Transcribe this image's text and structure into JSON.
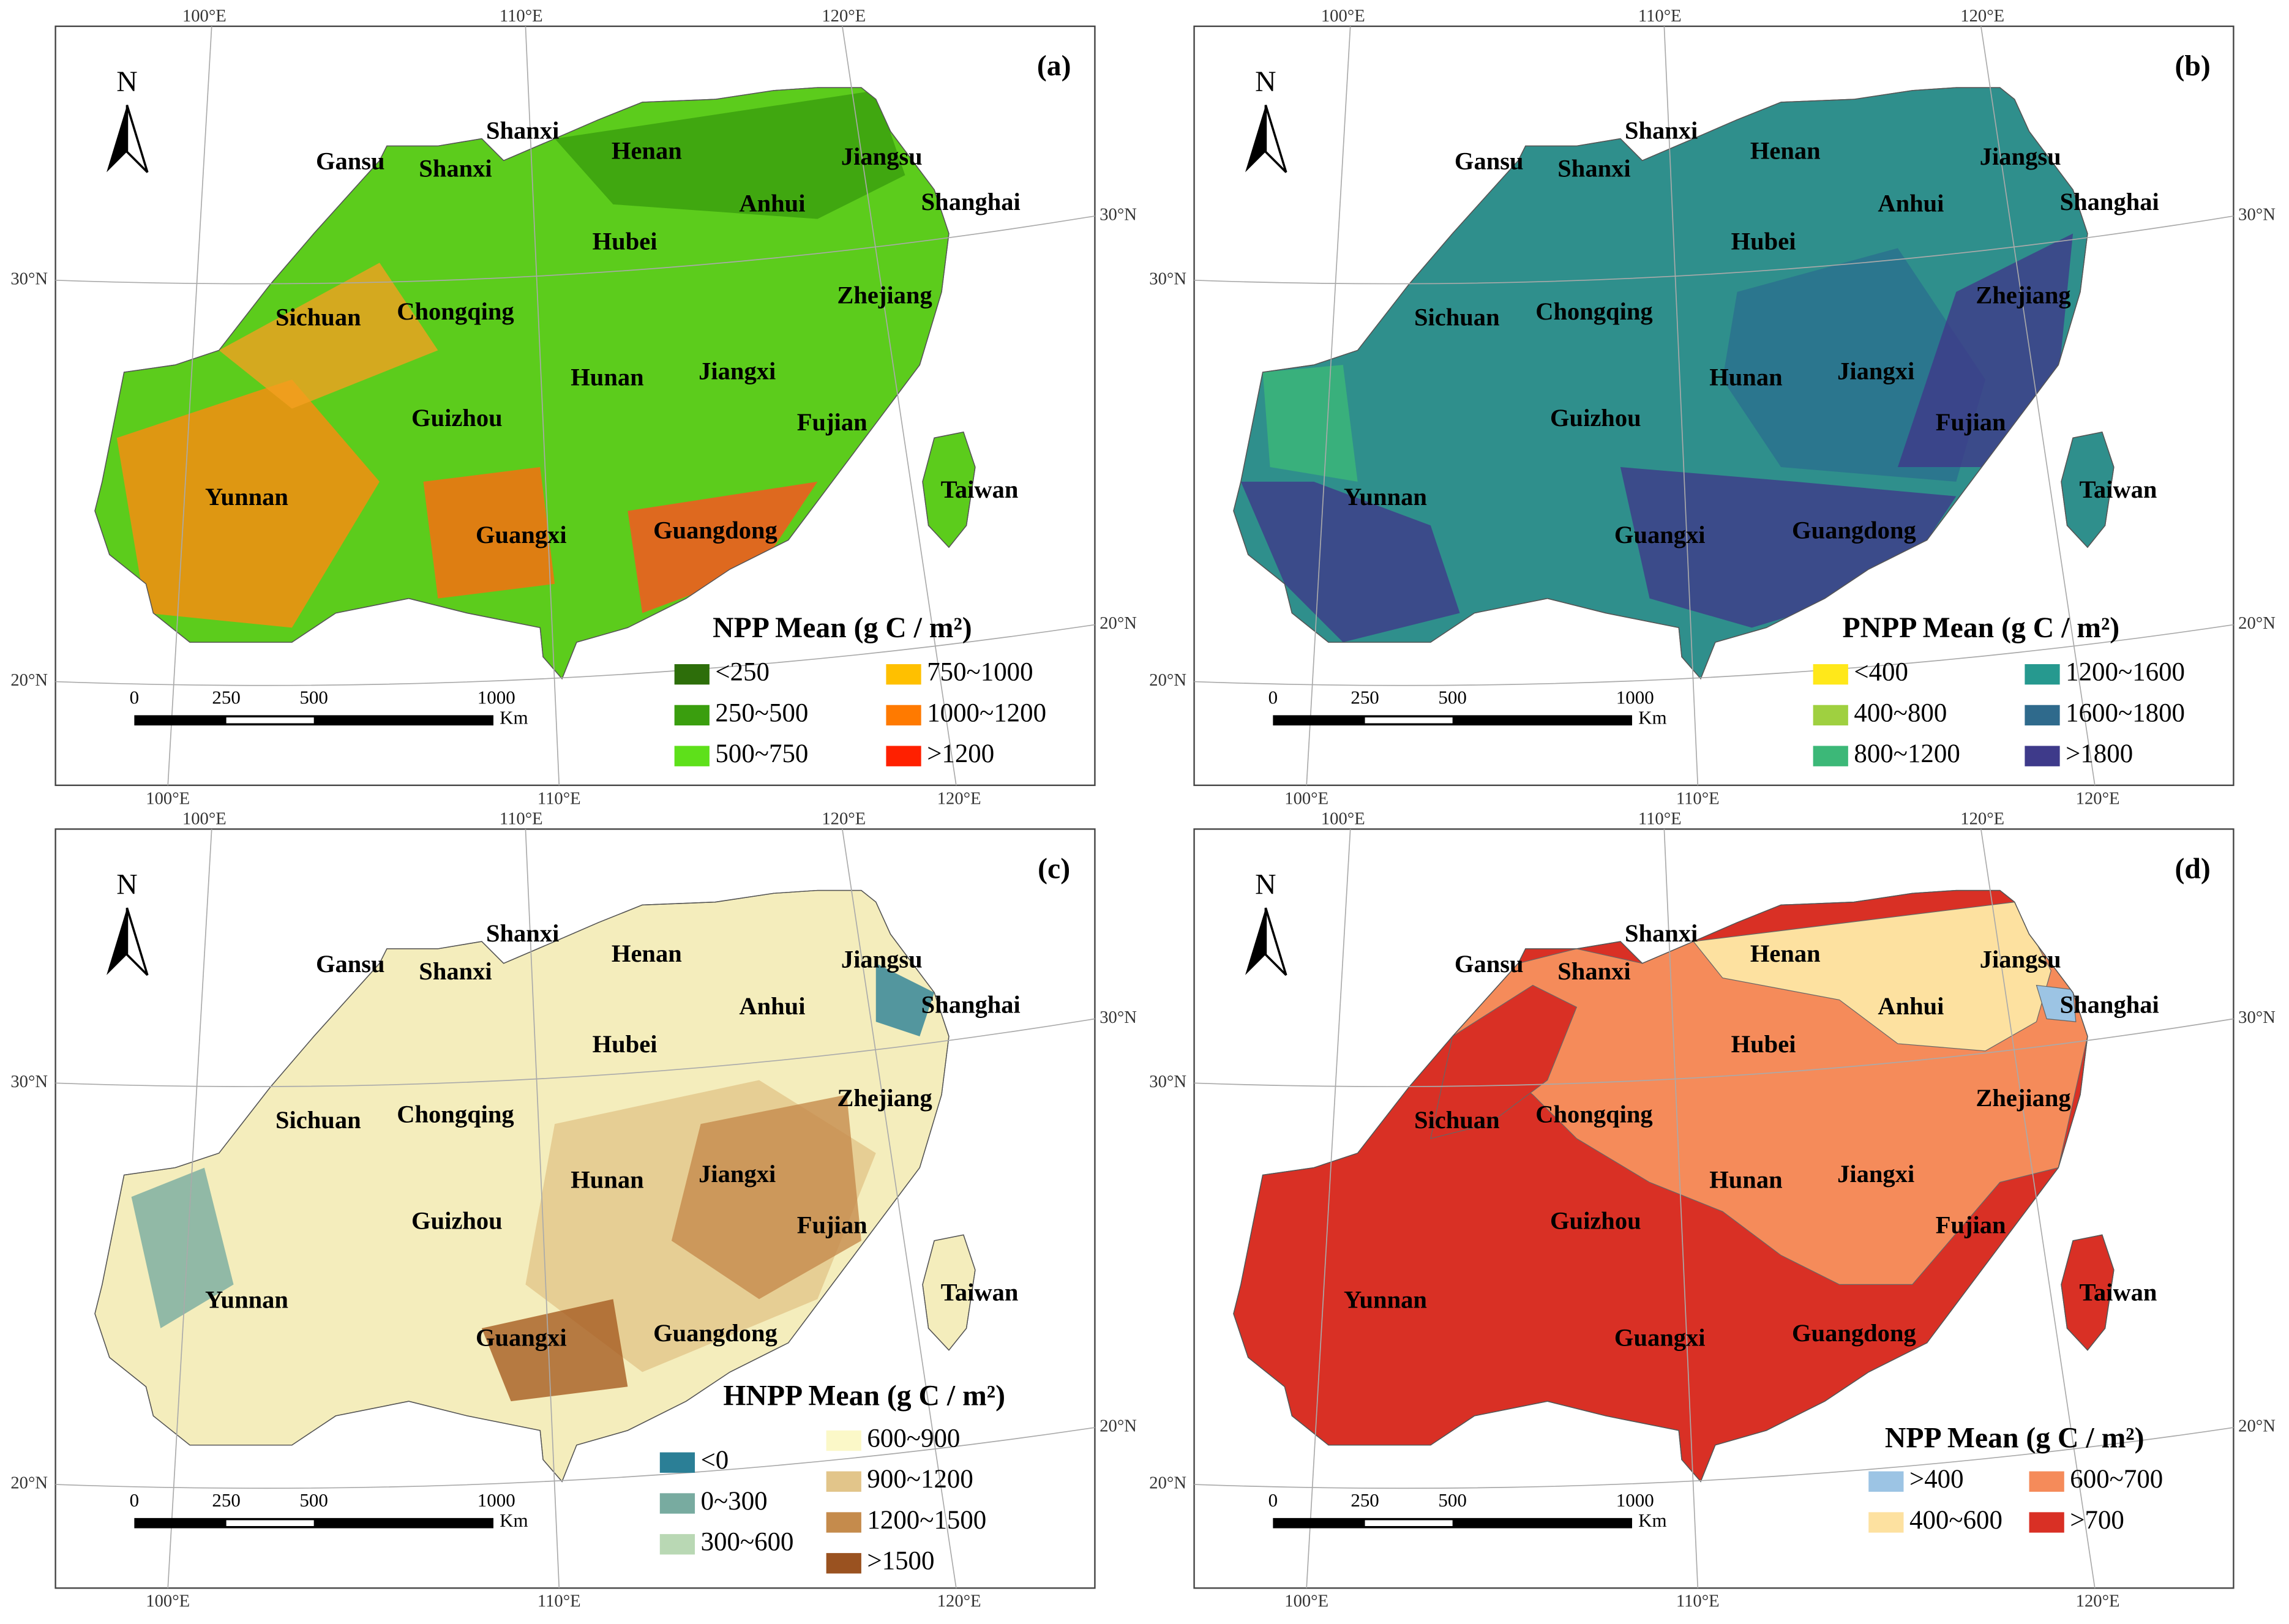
{
  "panels": [
    {
      "label": "(a)",
      "legend": {
        "title": "NPP Mean (g C / m²)",
        "items": [
          {
            "label": "<250",
            "color": "#2d6e0a"
          },
          {
            "label": "250~500",
            "color": "#3a9e0e"
          },
          {
            "label": "500~750",
            "color": "#5ee01a"
          },
          {
            "label": "750~1000",
            "color": "#ffc000"
          },
          {
            "label": "1000~1200",
            "color": "#ff7a00"
          },
          {
            "label": ">1200",
            "color": "#ff2000"
          }
        ]
      }
    },
    {
      "label": "(b)",
      "legend": {
        "title": "PNPP Mean (g C / m²)",
        "items": [
          {
            "label": "<400",
            "color": "#ffe81a"
          },
          {
            "label": "400~800",
            "color": "#9fd040"
          },
          {
            "label": "800~1200",
            "color": "#3cb878"
          },
          {
            "label": "1200~1600",
            "color": "#26998f"
          },
          {
            "label": "1600~1800",
            "color": "#2f6a8c"
          },
          {
            "label": ">1800",
            "color": "#3e3a8a"
          }
        ]
      }
    },
    {
      "label": "(c)",
      "legend": {
        "title": "HNPP Mean (g C / m²)",
        "items": [
          {
            "label": "<0",
            "color": "#2b7f96"
          },
          {
            "label": "0~300",
            "color": "#78aba0"
          },
          {
            "label": "300~600",
            "color": "#b9d8b4"
          },
          {
            "label": "600~900",
            "color": "#fbf8c8"
          },
          {
            "label": "900~1200",
            "color": "#e2c58a"
          },
          {
            "label": "1200~1500",
            "color": "#c58b4c"
          },
          {
            "label": ">1500",
            "color": "#9a5220"
          }
        ]
      }
    },
    {
      "label": "(d)",
      "legend": {
        "title": "NPP Mean (g C / m²)",
        "items": [
          {
            "label": ">400",
            "color": "#9cc4e4"
          },
          {
            "label": "400~600",
            "color": "#fde1a0"
          },
          {
            "label": "600~700",
            "color": "#f58b5a"
          },
          {
            "label": ">700",
            "color": "#d93025"
          }
        ]
      }
    }
  ],
  "provinces": [
    "Gansu",
    "Shanxi",
    "Shanxi",
    "Henan",
    "Jiangsu",
    "Anhui",
    "Shanghai",
    "Hubei",
    "Zhejiang",
    "Sichuan",
    "Chongqing",
    "Hunan",
    "Jiangxi",
    "Fujian",
    "Guizhou",
    "Taiwan",
    "Yunnan",
    "Guangxi",
    "Guangdong"
  ],
  "north": "N",
  "graticule": {
    "top": [
      "100°E",
      "110°E",
      "120°E"
    ],
    "bottom": [
      "100°E",
      "110°E",
      "120°E"
    ],
    "left": [
      "30°N",
      "20°N"
    ],
    "right": [
      "30°N",
      "20°N"
    ]
  },
  "scale_bar": {
    "ticks": [
      "0",
      "250",
      "500",
      "1000"
    ],
    "unit": "Km"
  }
}
